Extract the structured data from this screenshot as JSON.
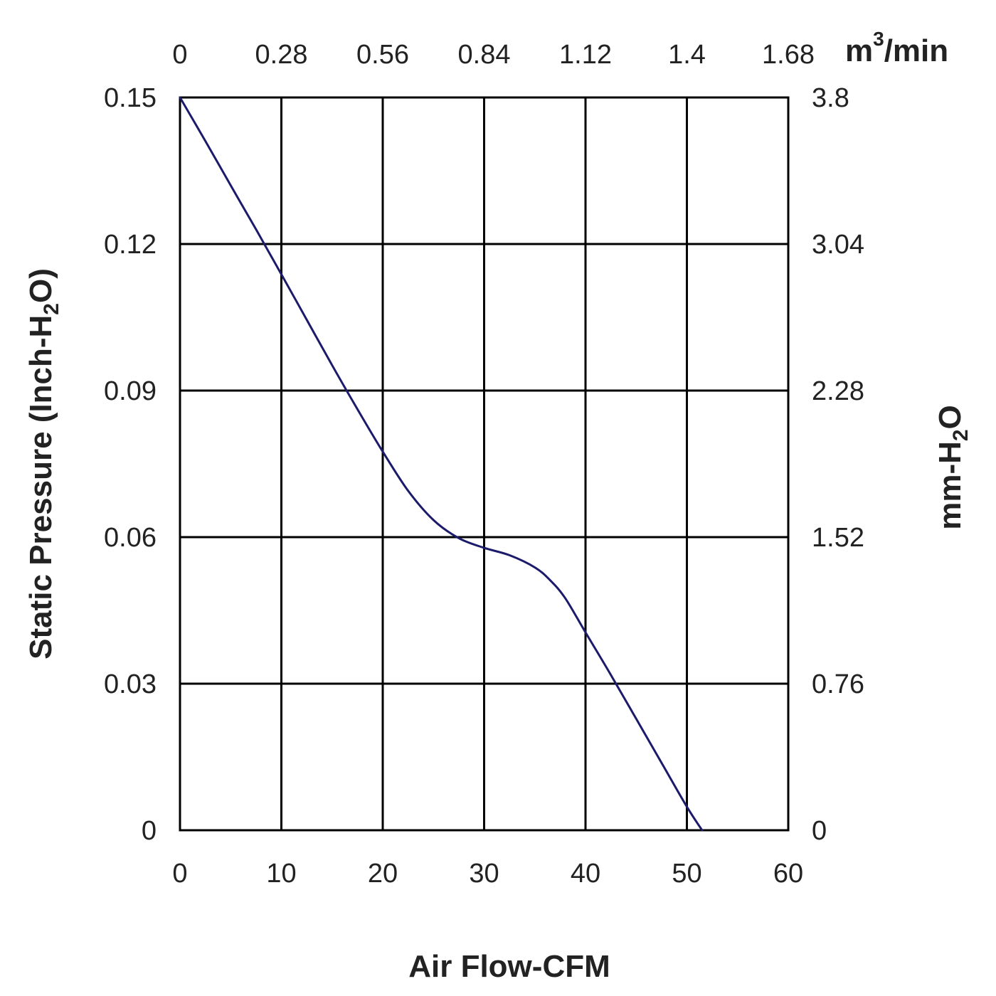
{
  "chart_data": {
    "type": "line",
    "xlabel": "Air Flow-CFM",
    "ylabel_left": {
      "main": "Static Pressure (Inch-H",
      "sub": "2",
      "tail": "O)"
    },
    "ylabel_right": {
      "main": "mm-H",
      "sub": "2",
      "tail": "O"
    },
    "x2label": {
      "main": "m",
      "sup": "3",
      "tail": "/min"
    },
    "xlim": [
      0,
      60
    ],
    "ylim": [
      0,
      0.15
    ],
    "x_ticks": [
      "0",
      "10",
      "20",
      "30",
      "40",
      "50",
      "60"
    ],
    "y_ticks": [
      "0",
      "0.03",
      "0.06",
      "0.09",
      "0.12",
      "0.15"
    ],
    "x2_ticks": [
      "0",
      "0.28",
      "0.56",
      "0.84",
      "1.12",
      "1.4",
      "1.68"
    ],
    "y2_ticks": [
      "0",
      "0.76",
      "1.52",
      "2.28",
      "3.04",
      "3.8"
    ],
    "grid": true,
    "series": [
      {
        "color": "#1c1a6b",
        "x": [
          0,
          2.5,
          5,
          7.5,
          10,
          12.5,
          15,
          17.5,
          20,
          22.5,
          25,
          27.5,
          30,
          32.5,
          35,
          36.5,
          38,
          40,
          42.5,
          45,
          47.5,
          50,
          51.5
        ],
        "y": [
          0.15,
          0.1411,
          0.132,
          0.123,
          0.1138,
          0.1045,
          0.0952,
          0.0862,
          0.0775,
          0.0695,
          0.0635,
          0.0598,
          0.0578,
          0.0563,
          0.0538,
          0.0512,
          0.0475,
          0.0405,
          0.0318,
          0.0228,
          0.0138,
          0.0048,
          0.0
        ]
      }
    ]
  }
}
